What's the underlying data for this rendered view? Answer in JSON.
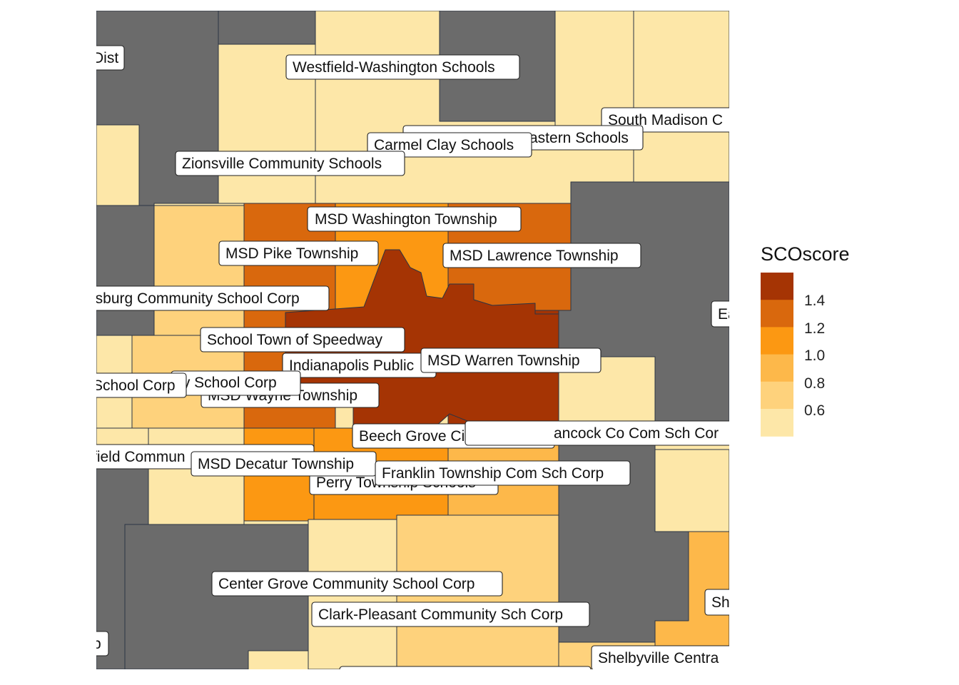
{
  "legend": {
    "title": "SCOscore",
    "ticks": [
      "1.4",
      "1.2",
      "1.0",
      "0.8",
      "0.6"
    ]
  },
  "colors": {
    "no_data": "#6b6b6b",
    "scale": [
      "#fde7a8",
      "#fed27c",
      "#fdb84a",
      "#fc9812",
      "#d9680d",
      "#a53404"
    ]
  },
  "labels": [
    "Dist",
    "Westfield-Washington Schools",
    "South Madison C",
    "astern Schools",
    "Carmel Clay Schools",
    "Zionsville Community Schools",
    "MSD Washington Township",
    "MSD Pike Township",
    "MSD Lawrence Township",
    "nsburg Community School Corp",
    "Ea",
    "School Town of Speedway",
    "Indianapolis Public",
    "MSD Warren Township",
    "School Corp",
    "ty School Corp",
    "MSD Wayne Township",
    "Beech Grove City Schools",
    "ancock Co Com Sch Cor",
    "field Commun",
    "MSD Decatur Township",
    "Franklin Township Com Sch Corp",
    "Perry Township Schools",
    "Center Grove Community School Corp",
    "Clark-Pleasant Community Sch Corp",
    "Sh",
    "p",
    "Shelbyville Centra"
  ]
}
